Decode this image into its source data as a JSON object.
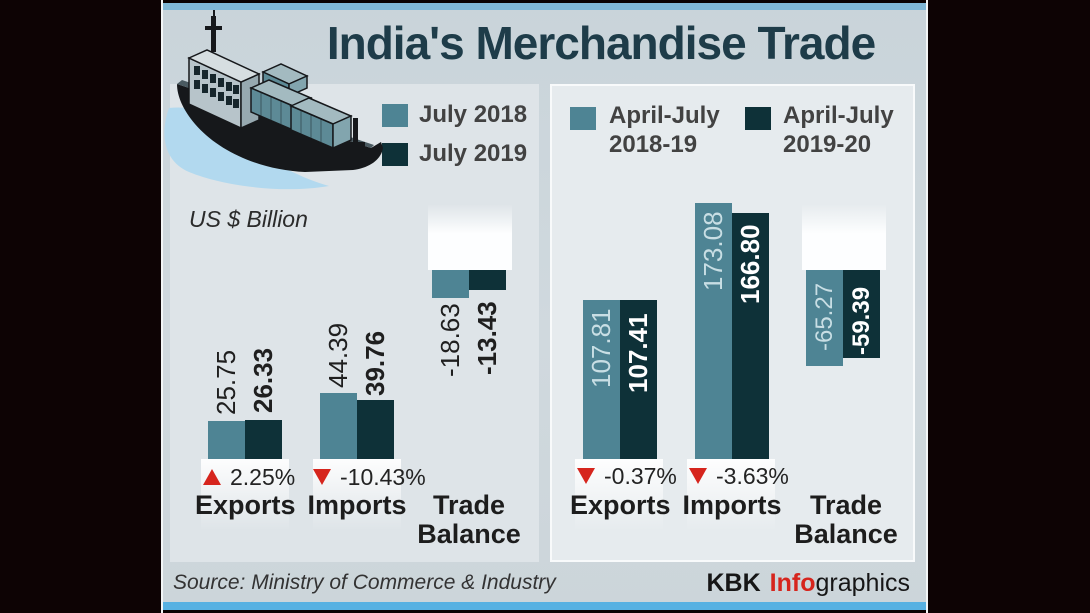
{
  "title": "India's Merchandise Trade",
  "colors": {
    "series_2018": "#4e8494",
    "series_2019": "#0e3138",
    "accent_red": "#d6251d",
    "title_color": "#1e3c49",
    "strip_top": "#7fb7d6",
    "strip_bottom": "#57b1e2"
  },
  "panels": [
    {
      "unit": "US $ Billion",
      "legend": [
        {
          "label": "July 2018"
        },
        {
          "label": "July 2019"
        }
      ],
      "groups": [
        {
          "label": "Exports",
          "values": [
            "25.75",
            "26.33"
          ],
          "change": "2.25%",
          "trend": "up"
        },
        {
          "label": "Imports",
          "values": [
            "44.39",
            "39.76"
          ],
          "change": "-10.43%",
          "trend": "down"
        },
        {
          "label_lines": [
            "Trade",
            "Balance"
          ],
          "values": [
            "-18.63",
            "-13.43"
          ]
        }
      ]
    },
    {
      "legend": [
        {
          "lines": [
            "April-July",
            "2018-19"
          ]
        },
        {
          "lines": [
            "April-July",
            "2019-20"
          ]
        }
      ],
      "groups": [
        {
          "label": "Exports",
          "values": [
            "107.81",
            "107.41"
          ],
          "change": "-0.37%",
          "trend": "down"
        },
        {
          "label": "Imports",
          "values": [
            "173.08",
            "166.80"
          ],
          "change": "-3.63%",
          "trend": "down"
        },
        {
          "label_lines": [
            "Trade",
            "Balance"
          ],
          "values": [
            "-65.27",
            "-59.39"
          ]
        }
      ]
    }
  ],
  "footer": {
    "source": "Source: Ministry of Commerce & Industry",
    "credit": {
      "bold": "KBK",
      "highlight": "Info",
      "rest": "graphics"
    }
  },
  "chart_data": [
    {
      "type": "bar",
      "title": "India's Merchandise Trade — July 2018 vs July 2019",
      "unit": "US $ Billion",
      "categories": [
        "Exports",
        "Imports",
        "Trade Balance"
      ],
      "series": [
        {
          "name": "July 2018",
          "values": [
            25.75,
            44.39,
            -18.63
          ]
        },
        {
          "name": "July 2019",
          "values": [
            26.33,
            39.76,
            -13.43
          ]
        }
      ],
      "pct_change": {
        "Exports": 2.25,
        "Imports": -10.43
      },
      "legend_position": "top",
      "grid": false
    },
    {
      "type": "bar",
      "title": "India's Merchandise Trade — April-July 2018-19 vs April-July 2019-20",
      "unit": "US $ Billion",
      "categories": [
        "Exports",
        "Imports",
        "Trade Balance"
      ],
      "series": [
        {
          "name": "April-July 2018-19",
          "values": [
            107.81,
            173.08,
            -65.27
          ]
        },
        {
          "name": "April-July 2019-20",
          "values": [
            107.41,
            166.8,
            -59.39
          ]
        }
      ],
      "pct_change": {
        "Exports": -0.37,
        "Imports": -3.63
      },
      "legend_position": "top",
      "grid": false
    }
  ]
}
